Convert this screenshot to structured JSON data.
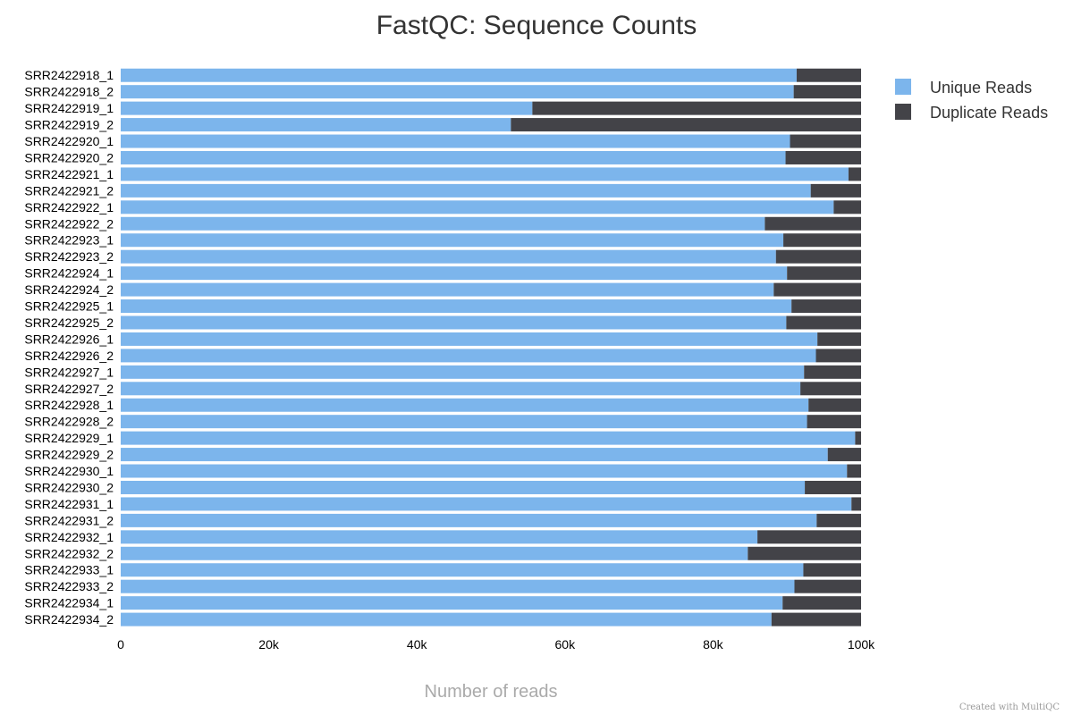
{
  "chart_data": {
    "type": "bar",
    "orientation": "horizontal",
    "stacked": true,
    "title": "FastQC: Sequence Counts",
    "xlabel": "Number of reads",
    "ylabel": "",
    "xlim": [
      0,
      100000
    ],
    "xticks": [
      "0",
      "20k",
      "40k",
      "60k",
      "80k",
      "100k"
    ],
    "xtick_values": [
      0,
      20000,
      40000,
      60000,
      80000,
      100000
    ],
    "legend_position": "top-right",
    "categories": [
      "SRR2422918_1",
      "SRR2422918_2",
      "SRR2422919_1",
      "SRR2422919_2",
      "SRR2422920_1",
      "SRR2422920_2",
      "SRR2422921_1",
      "SRR2422921_2",
      "SRR2422922_1",
      "SRR2422922_2",
      "SRR2422923_1",
      "SRR2422923_2",
      "SRR2422924_1",
      "SRR2422924_2",
      "SRR2422925_1",
      "SRR2422925_2",
      "SRR2422926_1",
      "SRR2422926_2",
      "SRR2422927_1",
      "SRR2422927_2",
      "SRR2422928_1",
      "SRR2422928_2",
      "SRR2422929_1",
      "SRR2422929_2",
      "SRR2422930_1",
      "SRR2422930_2",
      "SRR2422931_1",
      "SRR2422931_2",
      "SRR2422932_1",
      "SRR2422932_2",
      "SRR2422933_1",
      "SRR2422933_2",
      "SRR2422934_1",
      "SRR2422934_2"
    ],
    "series": [
      {
        "name": "Unique Reads",
        "color": "#7cb5ec",
        "values": [
          91300,
          90900,
          55600,
          52700,
          90400,
          89800,
          98300,
          93200,
          96300,
          87000,
          89500,
          88500,
          90000,
          88200,
          90600,
          89900,
          94100,
          93900,
          92300,
          91800,
          92900,
          92700,
          99200,
          95500,
          98100,
          92400,
          98700,
          94000,
          86000,
          84700,
          92200,
          91000,
          89400,
          87900
        ]
      },
      {
        "name": "Duplicate Reads",
        "color": "#434348",
        "values": [
          8700,
          9100,
          44400,
          47300,
          9600,
          10200,
          1700,
          6800,
          3700,
          13000,
          10500,
          11500,
          10000,
          11800,
          9400,
          10100,
          5900,
          6100,
          7700,
          8200,
          7100,
          7300,
          800,
          4500,
          1900,
          7600,
          1300,
          6000,
          14000,
          15300,
          7800,
          9000,
          10600,
          12100
        ]
      }
    ]
  },
  "credit": "Created with MultiQC"
}
